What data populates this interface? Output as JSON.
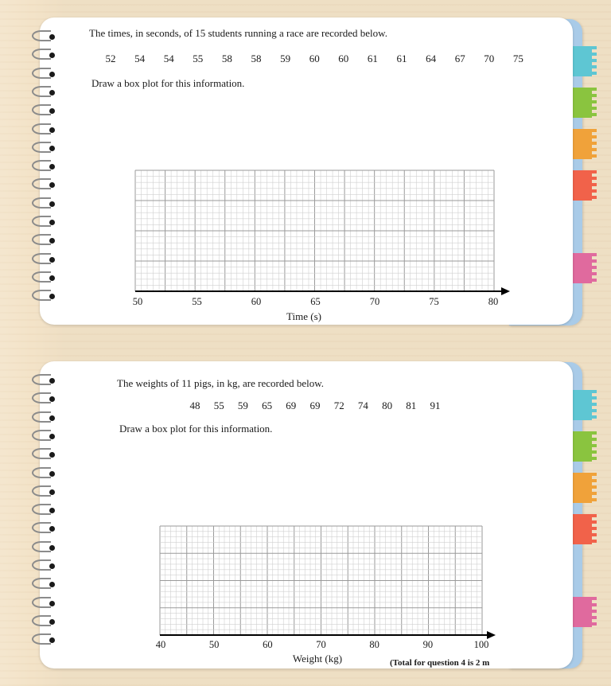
{
  "colors": {
    "background": "#f3e3c8",
    "spine": "#a9cbe8",
    "card": "#ffffff",
    "tabs": [
      "#5ec6d3",
      "#8ac43f",
      "#f0a23a",
      "#f1624a",
      "#e06a9e"
    ],
    "grid_minor": "#d0d0d0",
    "grid_major": "#9a9a9a"
  },
  "question1": {
    "intro": "The times, in seconds, of 15 students running a race are recorded below.",
    "values": [
      "52",
      "54",
      "54",
      "55",
      "58",
      "58",
      "59",
      "60",
      "60",
      "61",
      "61",
      "64",
      "67",
      "70",
      "75"
    ],
    "instruction": "Draw a box plot for this information.",
    "axis_ticks": [
      "50",
      "55",
      "60",
      "65",
      "70",
      "75",
      "80"
    ],
    "axis_label": "Time (s)"
  },
  "question2": {
    "intro": "The weights of 11 pigs, in kg, are recorded below.",
    "values": [
      "48",
      "55",
      "59",
      "65",
      "69",
      "69",
      "72",
      "74",
      "80",
      "81",
      "91"
    ],
    "instruction": "Draw a box plot for this information.",
    "axis_ticks": [
      "40",
      "50",
      "60",
      "70",
      "80",
      "90",
      "100"
    ],
    "axis_label": "Weight (kg)",
    "footer": "(Total for question 4 is 2 m"
  }
}
